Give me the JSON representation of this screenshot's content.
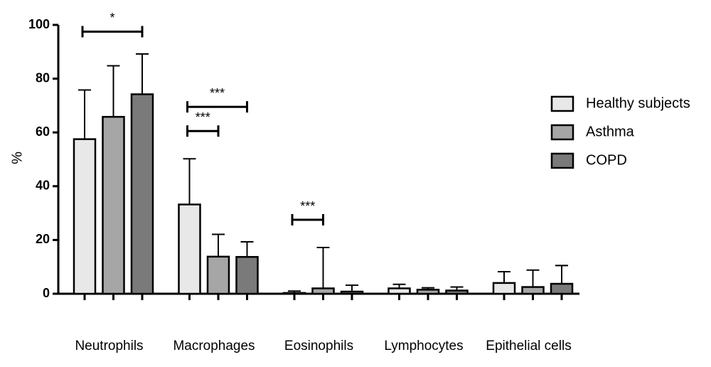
{
  "chart_data": {
    "type": "bar",
    "ylabel": "%",
    "categories": [
      "Neutrophils",
      "Macrophages",
      "Eosinophils",
      "Lymphocytes",
      "Epithelial cells"
    ],
    "series": [
      {
        "name": "Healthy subjects",
        "color": "#e8e8e8",
        "values": [
          57.5,
          33.2,
          0.3,
          2.0,
          4.0
        ],
        "errors": [
          18.3,
          17,
          0.7,
          1.5,
          4.2
        ]
      },
      {
        "name": "Asthma",
        "color": "#a6a6a6",
        "values": [
          65.8,
          13.8,
          2.0,
          1.5,
          2.5
        ],
        "errors": [
          19,
          8.3,
          15.2,
          0.7,
          6.3
        ]
      },
      {
        "name": "COPD",
        "color": "#7a7a7a",
        "values": [
          74.2,
          13.7,
          0.8,
          1.2,
          3.7
        ],
        "errors": [
          15,
          5.6,
          2.4,
          1.3,
          6.8
        ]
      }
    ],
    "ylim": [
      0,
      100
    ],
    "yticks": [
      0,
      20,
      40,
      60,
      80,
      100
    ],
    "legend": "right",
    "annotations": [
      {
        "label": "*",
        "category": 0,
        "from": 0,
        "to": 2,
        "y": 97.5
      },
      {
        "label": "***",
        "category": 1,
        "from": 0,
        "to": 2,
        "y": 69.5
      },
      {
        "label": "***",
        "category": 1,
        "from": 0,
        "to": 1,
        "y": 60.5
      },
      {
        "label": "***",
        "category": 2,
        "from": 0,
        "to": 1,
        "y": 27.5
      }
    ]
  }
}
